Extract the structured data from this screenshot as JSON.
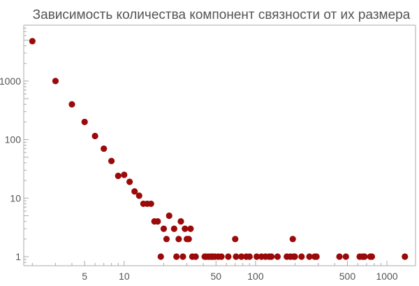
{
  "chart_data": {
    "type": "scatter",
    "title": "Зависимость количества компонент связности от их размера",
    "xlabel": "",
    "ylabel": "",
    "x_scale": "log",
    "y_scale": "log",
    "xlim": [
      1.72,
      1650
    ],
    "ylim": [
      0.7,
      9000
    ],
    "grid": false,
    "legend": "none",
    "point_color": "#9b0a0a",
    "x_tick_labels": [
      "5",
      "10",
      "50",
      "100",
      "500",
      "1000"
    ],
    "x_tick_values": [
      5,
      10,
      50,
      100,
      500,
      1000
    ],
    "y_tick_labels": [
      "1",
      "10",
      "100",
      "1000"
    ],
    "y_tick_values": [
      1,
      10,
      100,
      1000
    ],
    "series": [
      {
        "points": [
          [
            2,
            4800
          ],
          [
            3,
            1000
          ],
          [
            4,
            400
          ],
          [
            5,
            200
          ],
          [
            6,
            115
          ],
          [
            7,
            70
          ],
          [
            8,
            43
          ],
          [
            9,
            24
          ],
          [
            10,
            25
          ],
          [
            11,
            19
          ],
          [
            12,
            13
          ],
          [
            13,
            11
          ],
          [
            14,
            8
          ],
          [
            15,
            8
          ],
          [
            16,
            8
          ],
          [
            17,
            4
          ],
          [
            18,
            4
          ],
          [
            19,
            1
          ],
          [
            20,
            3
          ],
          [
            21,
            2
          ],
          [
            22,
            5
          ],
          [
            24,
            3
          ],
          [
            25,
            1
          ],
          [
            26,
            2
          ],
          [
            27,
            4
          ],
          [
            28,
            1
          ],
          [
            29,
            3
          ],
          [
            30,
            2
          ],
          [
            31,
            2
          ],
          [
            32,
            3
          ],
          [
            33,
            1
          ],
          [
            35,
            1
          ],
          [
            41,
            1
          ],
          [
            42,
            1
          ],
          [
            44,
            1
          ],
          [
            46,
            1
          ],
          [
            47,
            1
          ],
          [
            49,
            1
          ],
          [
            52,
            1
          ],
          [
            55,
            1
          ],
          [
            62,
            1
          ],
          [
            70,
            2
          ],
          [
            71,
            1
          ],
          [
            78,
            1
          ],
          [
            85,
            1
          ],
          [
            90,
            1
          ],
          [
            102,
            1
          ],
          [
            111,
            1
          ],
          [
            119,
            1
          ],
          [
            127,
            1
          ],
          [
            132,
            1
          ],
          [
            147,
            1
          ],
          [
            173,
            1
          ],
          [
            184,
            1
          ],
          [
            192,
            2
          ],
          [
            195,
            1
          ],
          [
            199,
            1
          ],
          [
            224,
            1
          ],
          [
            257,
            1
          ],
          [
            282,
            1
          ],
          [
            291,
            1
          ],
          [
            435,
            1
          ],
          [
            487,
            1
          ],
          [
            620,
            1
          ],
          [
            653,
            1
          ],
          [
            675,
            1
          ],
          [
            747,
            1
          ],
          [
            768,
            1
          ],
          [
            1370,
            1
          ]
        ]
      }
    ]
  }
}
